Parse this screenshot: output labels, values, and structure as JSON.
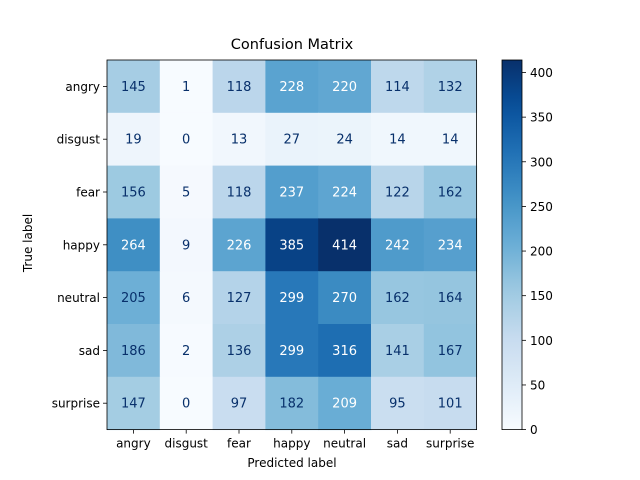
{
  "chart_data": {
    "type": "heatmap",
    "title": "Confusion Matrix",
    "xlabel": "Predicted label",
    "ylabel": "True label",
    "x_categories": [
      "angry",
      "disgust",
      "fear",
      "happy",
      "neutral",
      "sad",
      "surprise"
    ],
    "y_categories": [
      "angry",
      "disgust",
      "fear",
      "happy",
      "neutral",
      "sad",
      "surprise"
    ],
    "values": [
      [
        145,
        1,
        118,
        228,
        220,
        114,
        132
      ],
      [
        19,
        0,
        13,
        27,
        24,
        14,
        14
      ],
      [
        156,
        5,
        118,
        237,
        224,
        122,
        162
      ],
      [
        264,
        9,
        226,
        385,
        414,
        242,
        234
      ],
      [
        205,
        6,
        127,
        299,
        270,
        162,
        164
      ],
      [
        186,
        2,
        136,
        299,
        316,
        141,
        167
      ],
      [
        147,
        0,
        97,
        182,
        209,
        95,
        101
      ]
    ],
    "colormap": "Blues",
    "vmin": 0,
    "vmax": 414,
    "colorbar_ticks": [
      0,
      50,
      100,
      150,
      200,
      250,
      300,
      350,
      400
    ],
    "grid": false
  }
}
